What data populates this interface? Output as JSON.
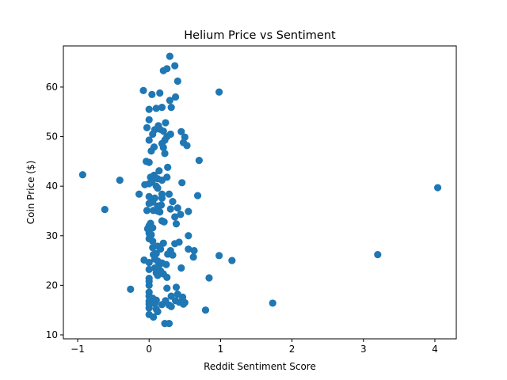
{
  "chart_data": {
    "type": "scatter",
    "title": "Helium Price vs Sentiment",
    "xlabel": "Reddit Sentiment Score",
    "ylabel": "Coin Price ($)",
    "xlim": [
      -1.2,
      4.3
    ],
    "ylim": [
      9.2,
      68.3
    ],
    "xticks": [
      -1,
      0,
      1,
      2,
      3,
      4
    ],
    "yticks": [
      10,
      20,
      30,
      40,
      50,
      60
    ],
    "grid": false,
    "legend": "none",
    "marker_color": "#1f77b4",
    "series": [
      {
        "points": [
          [
            0.29,
            66.2
          ],
          [
            0.36,
            64.3
          ],
          [
            0.25,
            63.7
          ],
          [
            0.2,
            63.3
          ],
          [
            0.4,
            61.2
          ],
          [
            -0.08,
            59.3
          ],
          [
            0.15,
            58.8
          ],
          [
            0.04,
            58.5
          ],
          [
            0.37,
            58.0
          ],
          [
            0.29,
            57.3
          ],
          [
            0.98,
            59.0
          ],
          [
            0.18,
            55.9
          ],
          [
            0.1,
            55.7
          ],
          [
            0.0,
            55.5
          ],
          [
            0.31,
            55.9
          ],
          [
            0.0,
            53.4
          ],
          [
            0.23,
            52.8
          ],
          [
            0.13,
            52.2
          ],
          [
            -0.03,
            51.8
          ],
          [
            0.08,
            51.4
          ],
          [
            0.15,
            51.5
          ],
          [
            0.05,
            50.5
          ],
          [
            0.2,
            51.1
          ],
          [
            0.25,
            50.0
          ],
          [
            0.3,
            50.5
          ],
          [
            0.45,
            51.0
          ],
          [
            0.5,
            49.9
          ],
          [
            0.0,
            49.3
          ],
          [
            0.22,
            49.3
          ],
          [
            0.18,
            48.6
          ],
          [
            0.48,
            48.8
          ],
          [
            0.53,
            48.2
          ],
          [
            0.07,
            47.9
          ],
          [
            0.03,
            47.1
          ],
          [
            0.2,
            47.8
          ],
          [
            0.22,
            46.6
          ],
          [
            0.7,
            45.2
          ],
          [
            -0.04,
            45.0
          ],
          [
            0.0,
            44.8
          ],
          [
            0.26,
            43.8
          ],
          [
            0.14,
            43.1
          ],
          [
            0.07,
            42.2
          ],
          [
            -0.93,
            42.3
          ],
          [
            0.02,
            41.8
          ],
          [
            0.08,
            41.8
          ],
          [
            0.12,
            41.5
          ],
          [
            0.25,
            41.8
          ],
          [
            0.18,
            41.2
          ],
          [
            -0.41,
            41.2
          ],
          [
            0.04,
            40.8
          ],
          [
            0.46,
            40.7
          ],
          [
            0.0,
            40.5
          ],
          [
            -0.06,
            40.3
          ],
          [
            0.1,
            40.0
          ],
          [
            4.04,
            39.7
          ],
          [
            0.12,
            39.6
          ],
          [
            0.18,
            38.4
          ],
          [
            0.28,
            38.4
          ],
          [
            -0.14,
            38.4
          ],
          [
            0.68,
            38.1
          ],
          [
            0.0,
            37.9
          ],
          [
            0.08,
            37.6
          ],
          [
            0.33,
            36.9
          ],
          [
            0.18,
            37.6
          ],
          [
            0.05,
            36.8
          ],
          [
            0.0,
            36.5
          ],
          [
            0.12,
            36.0
          ],
          [
            0.17,
            36.2
          ],
          [
            0.4,
            35.6
          ],
          [
            0.3,
            35.4
          ],
          [
            -0.62,
            35.3
          ],
          [
            -0.03,
            35.1
          ],
          [
            0.06,
            35.1
          ],
          [
            0.12,
            35.0
          ],
          [
            0.15,
            34.8
          ],
          [
            0.55,
            34.9
          ],
          [
            0.44,
            34.3
          ],
          [
            0.36,
            33.8
          ],
          [
            0.18,
            33.0
          ],
          [
            0.21,
            32.8
          ],
          [
            0.02,
            32.5
          ],
          [
            0.38,
            32.4
          ],
          [
            0.0,
            32.0
          ],
          [
            0.05,
            31.6
          ],
          [
            -0.02,
            31.4
          ],
          [
            0.0,
            30.5
          ],
          [
            0.03,
            30.2
          ],
          [
            0.55,
            30.0
          ],
          [
            0.0,
            29.4
          ],
          [
            0.05,
            28.9
          ],
          [
            0.2,
            28.5
          ],
          [
            0.36,
            28.4
          ],
          [
            0.42,
            28.7
          ],
          [
            0.12,
            27.9
          ],
          [
            0.05,
            27.6
          ],
          [
            0.55,
            27.3
          ],
          [
            0.63,
            27.0
          ],
          [
            0.16,
            27.3
          ],
          [
            0.3,
            27.0
          ],
          [
            0.1,
            26.4
          ],
          [
            0.26,
            26.3
          ],
          [
            0.06,
            26.2
          ],
          [
            0.33,
            26.1
          ],
          [
            0.62,
            25.7
          ],
          [
            0.98,
            26.0
          ],
          [
            3.2,
            26.2
          ],
          [
            -0.07,
            25.1
          ],
          [
            0.08,
            25.3
          ],
          [
            1.16,
            25.0
          ],
          [
            0.0,
            24.6
          ],
          [
            0.18,
            24.5
          ],
          [
            0.12,
            24.9
          ],
          [
            0.24,
            24.2
          ],
          [
            0.13,
            23.8
          ],
          [
            0.08,
            23.5
          ],
          [
            0.0,
            23.2
          ],
          [
            0.45,
            23.5
          ],
          [
            0.16,
            22.9
          ],
          [
            0.1,
            22.5
          ],
          [
            0.2,
            22.3
          ],
          [
            0.12,
            22.0
          ],
          [
            0.25,
            21.6
          ],
          [
            0.84,
            21.5
          ],
          [
            0.0,
            21.4
          ],
          [
            0.0,
            20.8
          ],
          [
            0.0,
            20.0
          ],
          [
            0.38,
            19.6
          ],
          [
            0.25,
            19.4
          ],
          [
            -0.26,
            19.2
          ],
          [
            0.0,
            18.6
          ],
          [
            0.4,
            18.2
          ],
          [
            0.0,
            17.8
          ],
          [
            0.31,
            17.8
          ],
          [
            0.05,
            17.4
          ],
          [
            0.47,
            17.6
          ],
          [
            0.1,
            17.0
          ],
          [
            0.23,
            16.9
          ],
          [
            0.37,
            16.9
          ],
          [
            0.0,
            16.8
          ],
          [
            0.42,
            16.6
          ],
          [
            0.5,
            16.5
          ],
          [
            1.73,
            16.4
          ],
          [
            0.0,
            16.2
          ],
          [
            0.08,
            16.3
          ],
          [
            0.18,
            16.1
          ],
          [
            0.28,
            16.0
          ],
          [
            0.31,
            15.7
          ],
          [
            0.48,
            16.2
          ],
          [
            0.0,
            15.4
          ],
          [
            0.1,
            15.2
          ],
          [
            0.79,
            15.0
          ],
          [
            0.12,
            14.7
          ],
          [
            0.0,
            14.1
          ],
          [
            0.06,
            13.6
          ],
          [
            0.22,
            12.3
          ],
          [
            0.28,
            12.3
          ]
        ]
      }
    ]
  }
}
